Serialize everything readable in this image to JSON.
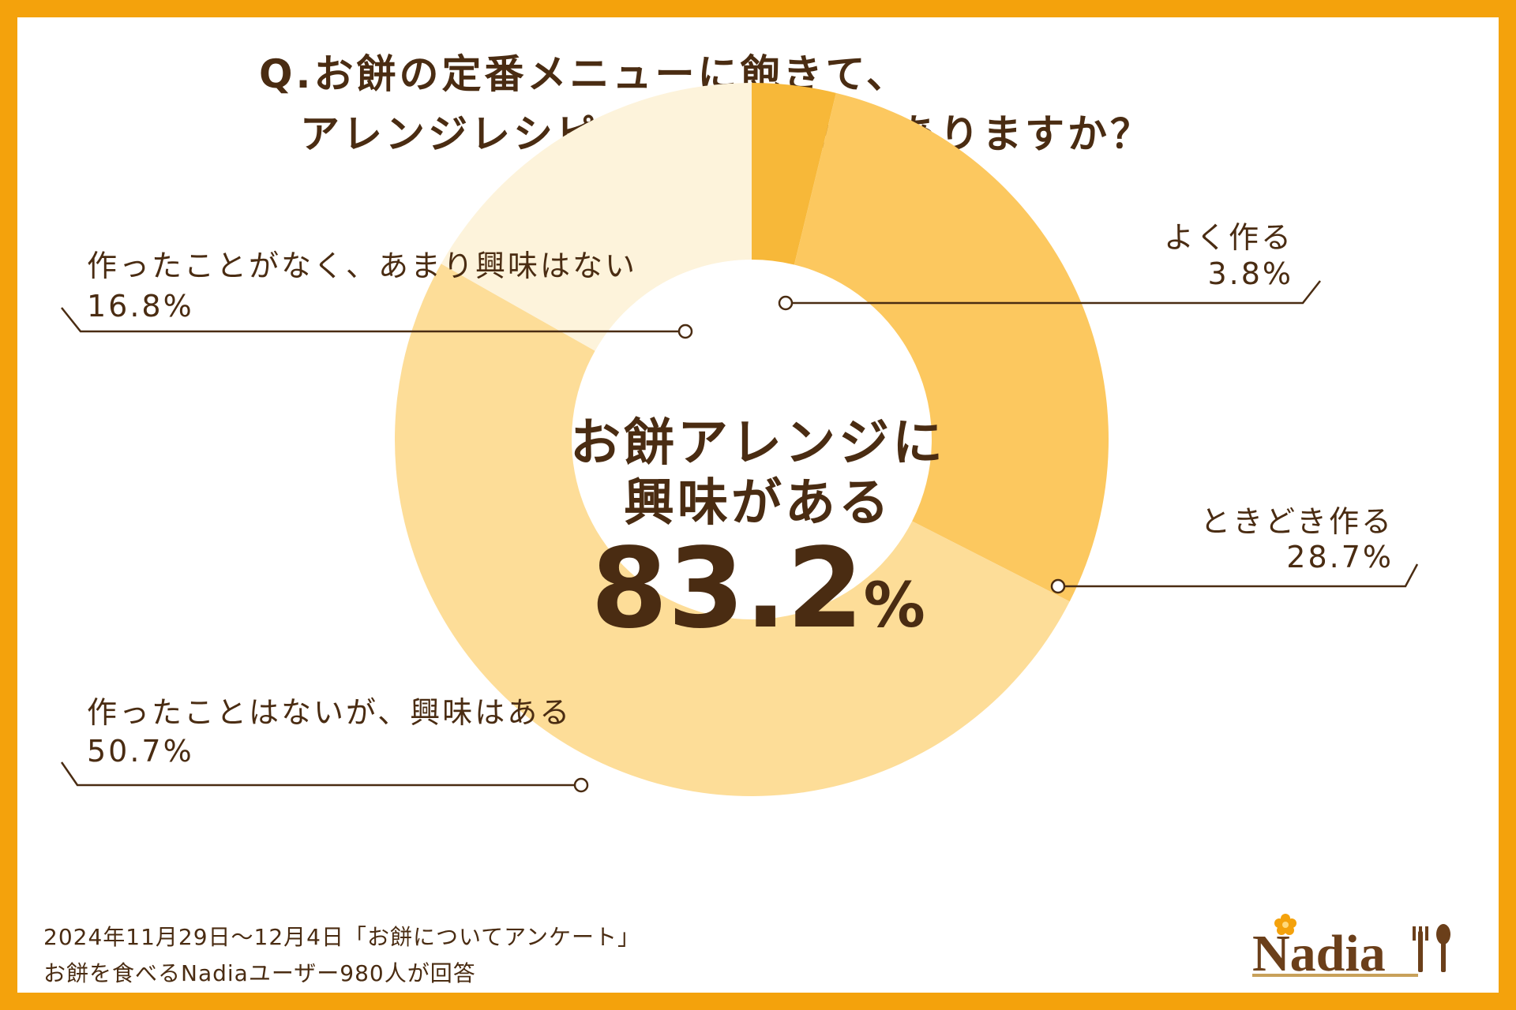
{
  "chart_data": {
    "type": "donut",
    "title_lines": [
      "Q.お餅の定番メニューに飽きて、",
      "アレンジレシピを作ったことがありますか？"
    ],
    "slices": [
      {
        "label": "よく作る",
        "value": 3.8,
        "value_text": "3.8%",
        "color": "#f7b839"
      },
      {
        "label": "ときどき作る",
        "value": 28.7,
        "value_text": "28.7%",
        "color": "#fcc85f"
      },
      {
        "label": "作ったことはないが、興味はある",
        "value": 50.7,
        "value_text": "50.7%",
        "color": "#fddd98"
      },
      {
        "label": "作ったことがなく、あまり興味はない",
        "value": 16.8,
        "value_text": "16.8%",
        "color": "#fdf3db"
      }
    ],
    "center": {
      "line1": "お餅アレンジに",
      "line2": "興味がある",
      "number": "83.2",
      "unit": "%"
    }
  },
  "footer": {
    "line1": "2024年11月29日～12月4日「お餅についてアンケート」",
    "line2": "お餅を食べるNadiaユーザー980人が回答"
  },
  "logo": {
    "text": "Nadia"
  },
  "colors": {
    "border": "#f4a20c",
    "text": "#4a2c12"
  }
}
